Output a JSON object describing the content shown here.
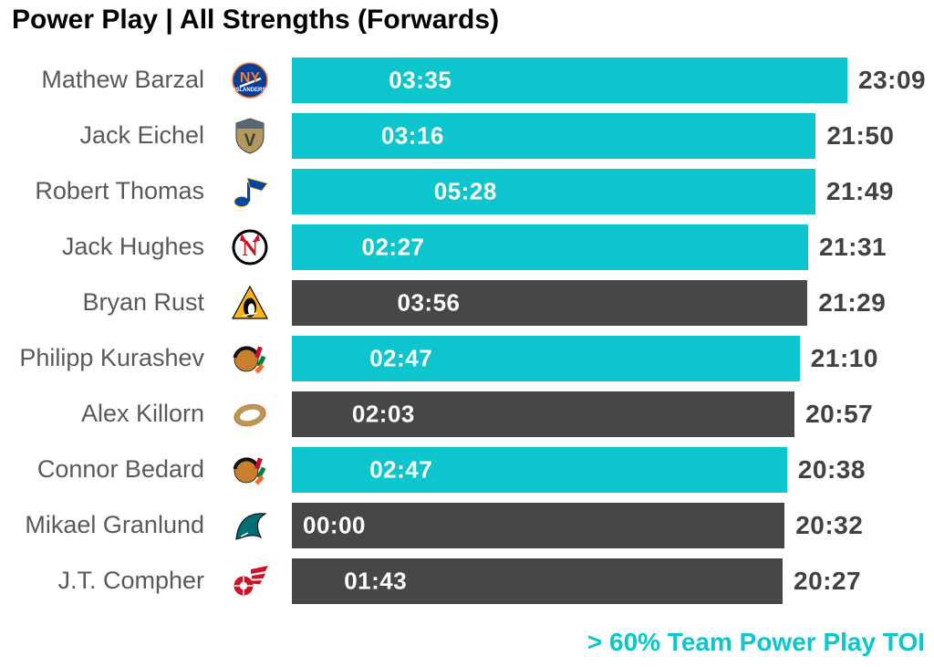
{
  "header": {
    "title": "Power Play | All Strengths (Forwards)"
  },
  "footer": {
    "legend_note": "> 60% Team Power Play TOI"
  },
  "colors": {
    "highlight_bar": "#0dc5cc",
    "regular_bar": "#474747",
    "bar_label_text": "#ffffff",
    "total_label_text": "#414042",
    "player_name_text": "#58595b",
    "title_text": "#000000",
    "legend_note_text": "#0dc5cc"
  },
  "chart_data": {
    "type": "bar",
    "orientation": "horizontal",
    "title": "Power Play | All Strengths (Forwards)",
    "bar_length_metric": "All Strengths TOI (mm:ss, right label)",
    "in_bar_label_metric": "Power Play TOI (mm:ss, white label inside bar)",
    "legend": "Teal bars = > 60% Team Power Play TOI; dark gray bars = not",
    "legend_position": "bottom-right",
    "x_axis": {
      "min_seconds": 0,
      "max_total_toi": "23:09",
      "gridlines": false
    },
    "players": [
      {
        "name": "Mathew Barzal",
        "team": "NYI",
        "pp_toi": "03:35",
        "pp_seconds": 215,
        "total_toi": "23:09",
        "total_seconds": 1389,
        "highlight": true
      },
      {
        "name": "Jack Eichel",
        "team": "VGK",
        "pp_toi": "03:16",
        "pp_seconds": 196,
        "total_toi": "21:50",
        "total_seconds": 1310,
        "highlight": true
      },
      {
        "name": "Robert Thomas",
        "team": "STL",
        "pp_toi": "05:28",
        "pp_seconds": 328,
        "total_toi": "21:49",
        "total_seconds": 1309,
        "highlight": true
      },
      {
        "name": "Jack Hughes",
        "team": "NJD",
        "pp_toi": "02:27",
        "pp_seconds": 147,
        "total_toi": "21:31",
        "total_seconds": 1291,
        "highlight": true
      },
      {
        "name": "Bryan Rust",
        "team": "PIT",
        "pp_toi": "03:56",
        "pp_seconds": 236,
        "total_toi": "21:29",
        "total_seconds": 1289,
        "highlight": false
      },
      {
        "name": "Philipp Kurashev",
        "team": "CHI",
        "pp_toi": "02:47",
        "pp_seconds": 167,
        "total_toi": "21:10",
        "total_seconds": 1270,
        "highlight": true
      },
      {
        "name": "Alex Killorn",
        "team": "ANA",
        "pp_toi": "02:03",
        "pp_seconds": 123,
        "total_toi": "20:57",
        "total_seconds": 1257,
        "highlight": false
      },
      {
        "name": "Connor Bedard",
        "team": "CHI",
        "pp_toi": "02:47",
        "pp_seconds": 167,
        "total_toi": "20:38",
        "total_seconds": 1238,
        "highlight": true
      },
      {
        "name": "Mikael Granlund",
        "team": "SJS",
        "pp_toi": "00:00",
        "pp_seconds": 0,
        "total_toi": "20:32",
        "total_seconds": 1232,
        "highlight": false
      },
      {
        "name": "J.T. Compher",
        "team": "DET",
        "pp_toi": "01:43",
        "pp_seconds": 103,
        "total_toi": "20:27",
        "total_seconds": 1227,
        "highlight": false
      }
    ],
    "teams": {
      "NYI": {
        "name": "New York Islanders",
        "c1": "#0b3e90",
        "c2": "#f57d31",
        "c3": "#ffffff"
      },
      "VGK": {
        "name": "Vegas Golden Knights",
        "c1": "#b4975a",
        "c2": "#333f42",
        "c3": "#5a6670"
      },
      "STL": {
        "name": "St. Louis Blues",
        "c1": "#0546a0",
        "c2": "#fcb514",
        "c3": "#041e42"
      },
      "NJD": {
        "name": "New Jersey Devils",
        "c1": "#ce1126",
        "c2": "#000000",
        "c3": "#ffffff"
      },
      "PIT": {
        "name": "Pittsburgh Penguins",
        "c1": "#fcb514",
        "c2": "#000000",
        "c3": "#ffffff"
      },
      "CHI": {
        "name": "Chicago Blackhawks",
        "c1": "#c8802e",
        "c2": "#cf0a2c",
        "c3": "#00843d"
      },
      "ANA": {
        "name": "Anaheim Ducks",
        "c1": "#b5985a",
        "c2": "#f95602",
        "c3": "#000000"
      },
      "SJS": {
        "name": "San Jose Sharks",
        "c1": "#006d75",
        "c2": "#000000",
        "c3": "#e57200"
      },
      "DET": {
        "name": "Detroit Red Wings",
        "c1": "#ce1126",
        "c2": "#ffffff",
        "c3": "#ce1126"
      }
    }
  }
}
